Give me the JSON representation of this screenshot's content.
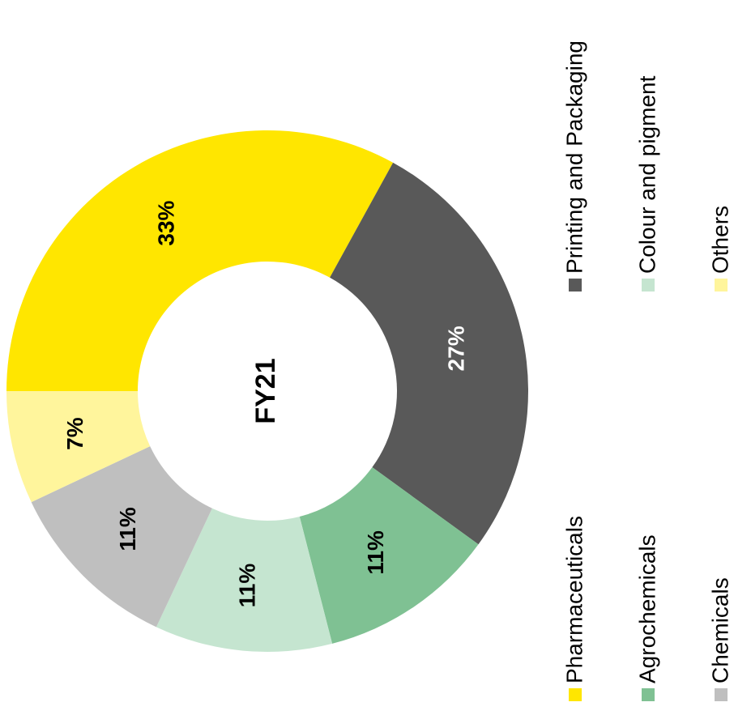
{
  "chart_data": {
    "type": "donut",
    "center_label": "FY21",
    "categories": [
      "Pharmaceuticals",
      "Printing and Packaging",
      "Agrochemicals",
      "Colour and pigment",
      "Chemicals",
      "Others"
    ],
    "values": [
      33,
      27,
      11,
      11,
      11,
      7
    ],
    "value_labels": [
      "33%",
      "27%",
      "11%",
      "11%",
      "11%",
      "7%"
    ],
    "colors": [
      "#ffe600",
      "#595959",
      "#7fc193",
      "#c5e5d0",
      "#bfbfbf",
      "#fff59c"
    ]
  }
}
